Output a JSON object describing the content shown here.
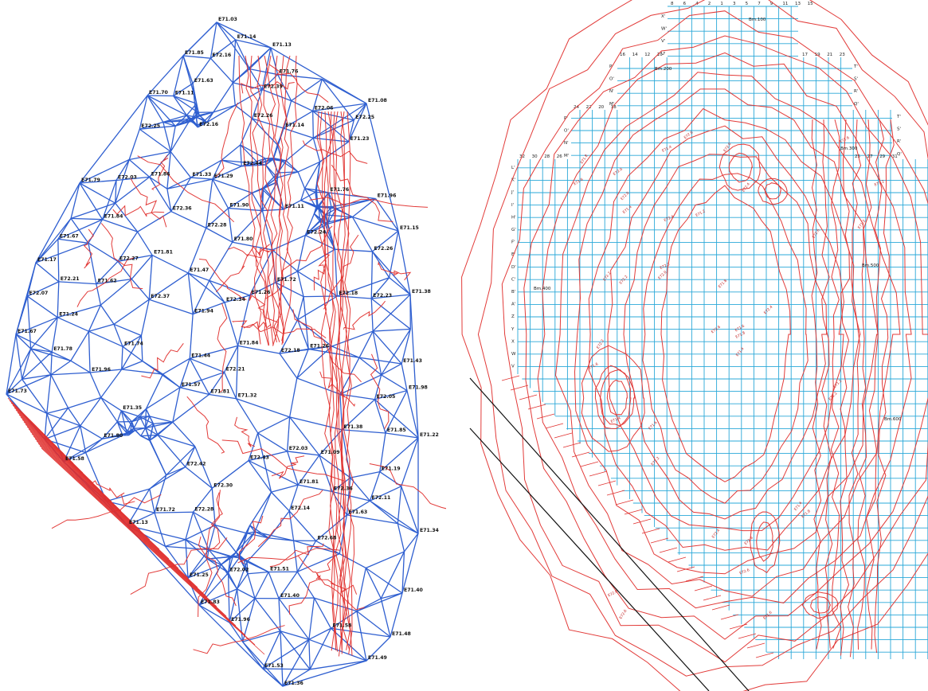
{
  "left_map": {
    "elevation_labels": [
      "E71.03",
      "E71.13",
      "E71.08",
      "E71.15",
      "E71.38",
      "E71.22",
      "E71.34",
      "E71.40",
      "E71.48",
      "E71.49",
      "E71.36",
      "E71.53",
      "E71.83",
      "E71.13",
      "E71.58",
      "E71.73",
      "E71.67",
      "E71.17",
      "E71.79",
      "E71.70",
      "E71.85",
      "E71.81",
      "E71.44",
      "E71.26",
      "E71.76",
      "E71.29",
      "E71.14",
      "E71.84",
      "E71.24",
      "E71.57",
      "E71.11",
      "E71.33",
      "E71.80",
      "E71.81",
      "E71.09",
      "E71.63",
      "E72.07",
      "E72.03",
      "E71.25",
      "E71.94",
      "E72.03",
      "E72.06",
      "E71.14",
      "E71.62",
      "E72.14",
      "E71.96",
      "E71.81",
      "E71.40",
      "E72.02",
      "E72.25",
      "E72.16",
      "E71.74",
      "E71.84",
      "E71.11",
      "E72.28",
      "E72.27",
      "E71.47",
      "E71.96",
      "E72.34",
      "E72.18",
      "E71.19",
      "E72.23",
      "E72.30",
      "E71.58",
      "E71.51",
      "E71.98",
      "E71.72",
      "E72.68",
      "E72.11",
      "E71.96",
      "E71.43",
      "E71.23",
      "E72.37",
      "E72.05",
      "E71.90",
      "E71.86",
      "E71.26",
      "E71.80",
      "E72.18",
      "E72.25",
      "E71.85",
      "E72.36",
      "E71.35",
      "E71.32",
      "E72.21",
      "E71.63",
      "E72.21",
      "E72.26",
      "E71.38",
      "E72.16",
      "E72.28",
      "E72.44",
      "E72.43",
      "E72.39",
      "E72.42",
      "E72.26",
      "E71.67",
      "E71.72",
      "E71.76",
      "E71.78",
      "E72.36",
      "E72.24"
    ]
  },
  "right_map": {
    "column_labels_top": [
      "8",
      "6",
      "4",
      "2",
      "1",
      "3",
      "5",
      "7",
      "9",
      "11",
      "13",
      "15"
    ],
    "column_labels_mid": [
      "16",
      "14",
      "12",
      "10"
    ],
    "column_labels_right": [
      "17",
      "19",
      "21",
      "23"
    ],
    "column_labels_left": [
      "24",
      "22",
      "20",
      "18"
    ],
    "column_labels_far_left": [
      "32",
      "30",
      "28",
      "26"
    ],
    "column_labels_far_right": [
      "25",
      "27",
      "29",
      "31"
    ],
    "row_labels_top": [
      "X'",
      "W'",
      "V'",
      "U'"
    ],
    "row_labels_upper": [
      "T'",
      "S'",
      "R'",
      "Q'"
    ],
    "row_labels_mid": [
      "P'",
      "O'",
      "N'",
      "M'"
    ],
    "row_labels_left": [
      "L'",
      "K'",
      "J'",
      "I'",
      "H'",
      "G'",
      "F'",
      "E'",
      "D'",
      "C'",
      "B'",
      "A'",
      "Z",
      "Y",
      "X",
      "W",
      "V"
    ],
    "benchmarks": [
      "Bm.100",
      "Bm.200",
      "Bm.300",
      "Bm.400",
      "Bm.500",
      "Bm.600"
    ],
    "contour_values": [
      "E72.2",
      "E72.0",
      "E71.8",
      "E71.6",
      "E71.4",
      "E72.4",
      "E72.6",
      "E71.2"
    ]
  },
  "colors": {
    "tin_edge": "#2f5fd0",
    "contour": "#e0302e",
    "grid": "#2aa8d8",
    "label": "#111111"
  }
}
